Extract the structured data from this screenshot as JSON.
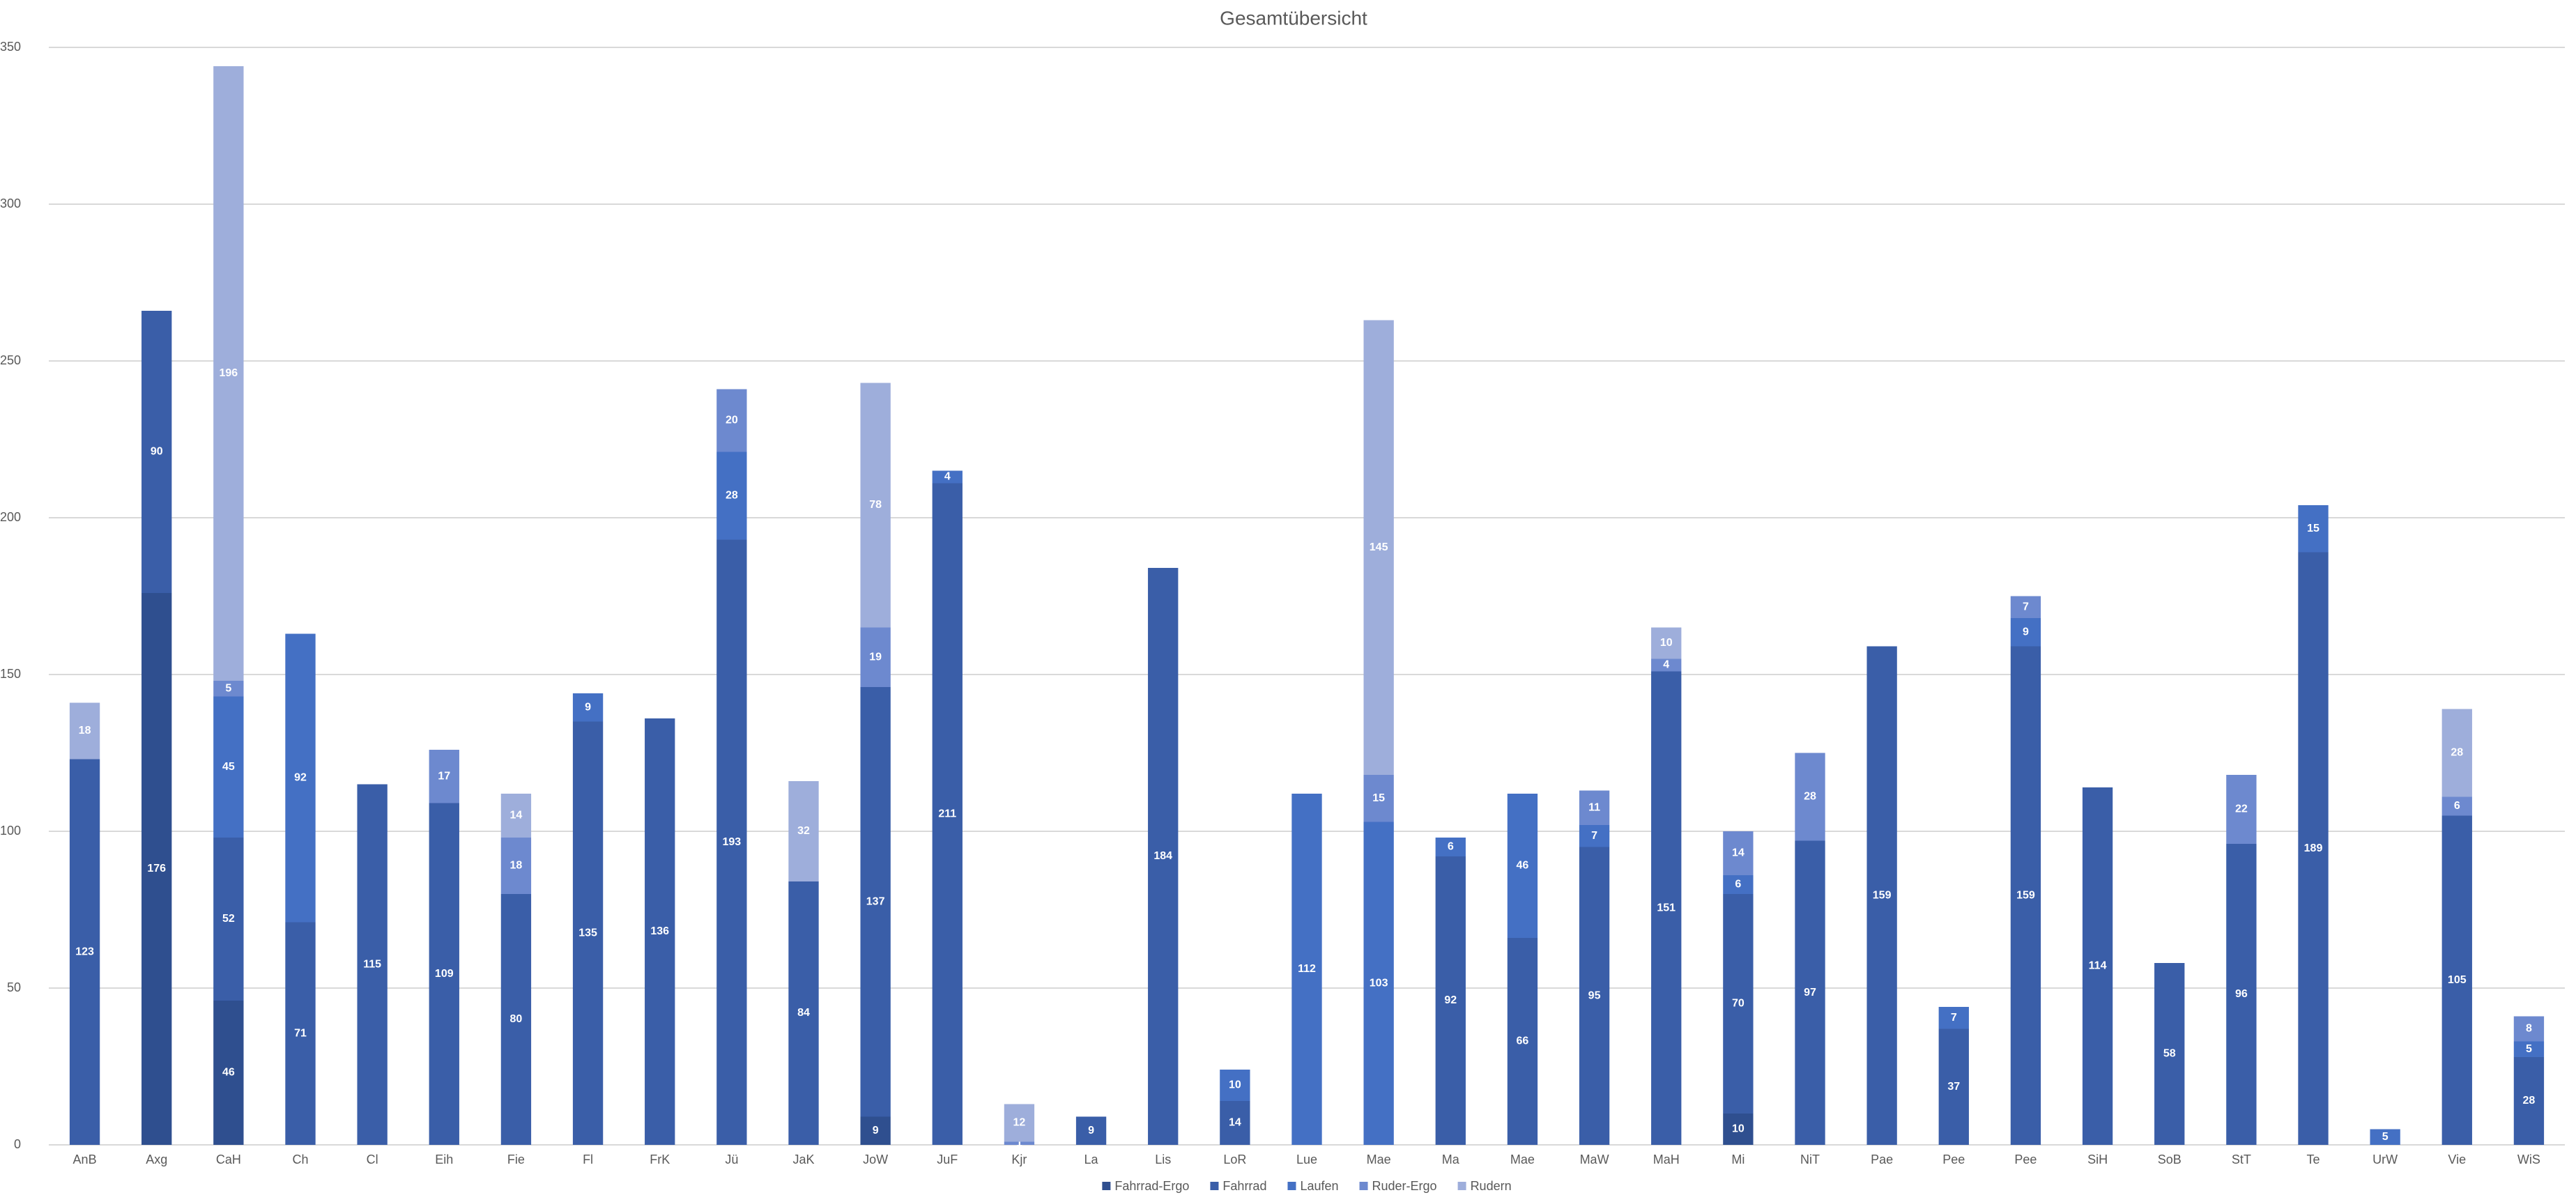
{
  "chart_data": {
    "type": "stacked_bar",
    "title": "Gesamtübersicht",
    "categories": [
      "AnB",
      "Axg",
      "CaH",
      "Ch",
      "Cl",
      "Eih",
      "Fie",
      "Fl",
      "FrK",
      "Jü",
      "JaK",
      "JoW",
      "JuF",
      "Kjr",
      "La",
      "Lis",
      "LoR",
      "Lue",
      "Mae",
      "Ma",
      "Mae",
      "MaW",
      "MaH",
      "Mi",
      "NiT",
      "Pae",
      "Pee",
      "Pee",
      "SiH",
      "SoB",
      "StT",
      "Te",
      "UrW",
      "Vie",
      "WiS"
    ],
    "series": [
      {
        "name": "Fahrrad-Ergo",
        "color": "#2f4f8f",
        "values": [
          null,
          176,
          46,
          null,
          null,
          null,
          null,
          null,
          null,
          null,
          null,
          9,
          null,
          null,
          null,
          null,
          null,
          null,
          null,
          null,
          null,
          null,
          null,
          10,
          null,
          null,
          null,
          null,
          null,
          null,
          null,
          null,
          null,
          null,
          null
        ]
      },
      {
        "name": "Fahrrad",
        "color": "#3a5ea8",
        "values": [
          123,
          90,
          52,
          71,
          115,
          109,
          80,
          135,
          136,
          193,
          84,
          137,
          211,
          null,
          9,
          184,
          14,
          null,
          null,
          92,
          66,
          95,
          151,
          70,
          97,
          159,
          37,
          159,
          114,
          58,
          96,
          189,
          null,
          105,
          28
        ]
      },
      {
        "name": "Laufen",
        "color": "#4470c4",
        "values": [
          null,
          null,
          45,
          92,
          null,
          null,
          null,
          9,
          null,
          28,
          null,
          null,
          4,
          null,
          null,
          null,
          10,
          112,
          103,
          6,
          46,
          7,
          null,
          6,
          null,
          null,
          7,
          9,
          null,
          null,
          null,
          15,
          5,
          null,
          5
        ]
      },
      {
        "name": "Ruder-Ergo",
        "color": "#6d89cf",
        "values": [
          null,
          null,
          5,
          null,
          null,
          17,
          18,
          null,
          null,
          20,
          null,
          19,
          null,
          1,
          null,
          null,
          null,
          null,
          15,
          null,
          null,
          11,
          4,
          14,
          28,
          null,
          null,
          7,
          null,
          null,
          22,
          null,
          null,
          6,
          8
        ]
      },
      {
        "name": "Rudern",
        "color": "#9eaedb",
        "values": [
          18,
          null,
          196,
          null,
          null,
          null,
          14,
          null,
          null,
          null,
          32,
          78,
          null,
          12,
          null,
          null,
          null,
          null,
          145,
          null,
          null,
          null,
          10,
          null,
          null,
          null,
          null,
          null,
          null,
          null,
          null,
          null,
          null,
          28,
          null
        ]
      }
    ],
    "ylim": [
      0,
      350
    ],
    "yticks": [
      0,
      50,
      100,
      150,
      200,
      250,
      300,
      350
    ],
    "grid": true,
    "legend": "bottom"
  }
}
